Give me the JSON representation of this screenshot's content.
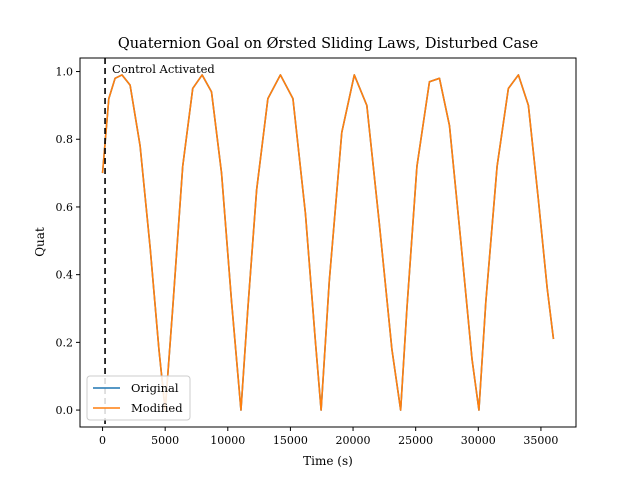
{
  "chart_data": {
    "type": "line",
    "title": "Quaternion Goal on Ørsted Sliding Laws, Disturbed Case",
    "xlabel": "Time (s)",
    "ylabel": "Quat",
    "xlim": [
      -1800,
      37800
    ],
    "ylim": [
      -0.05,
      1.04
    ],
    "xticks": [
      0,
      5000,
      10000,
      15000,
      20000,
      25000,
      30000,
      35000
    ],
    "yticks": [
      0.0,
      0.2,
      0.4,
      0.6,
      0.8,
      1.0
    ],
    "xtick_labels": [
      "0",
      "5000",
      "10000",
      "15000",
      "20000",
      "25000",
      "30000",
      "35000"
    ],
    "ytick_labels": [
      "0.0",
      "0.2",
      "0.4",
      "0.6",
      "0.8",
      "1.0"
    ],
    "grid": false,
    "legend_position": "lower-left",
    "annotation": {
      "text": "Control Activated",
      "x": 200
    },
    "series": [
      {
        "name": "Original",
        "color": "#1f77b4",
        "x": [
          0,
          500,
          1000,
          1550,
          2200,
          3000,
          3800,
          4500,
          5000,
          5600,
          6400,
          7200,
          7950,
          8700,
          9500,
          10300,
          11050,
          11600,
          12300,
          13200,
          14200,
          15200,
          16200,
          17000,
          17450,
          18100,
          19100,
          20100,
          21100,
          22100,
          23100,
          23800,
          24300,
          25100,
          26100,
          26900,
          27700,
          28600,
          29500,
          30050,
          30600,
          31500,
          32400,
          33200,
          34000,
          34800,
          35500,
          36000
        ],
        "y": [
          0.7,
          0.92,
          0.98,
          0.99,
          0.96,
          0.78,
          0.48,
          0.18,
          0.0,
          0.3,
          0.72,
          0.95,
          0.99,
          0.94,
          0.7,
          0.32,
          0.0,
          0.3,
          0.65,
          0.92,
          0.99,
          0.92,
          0.58,
          0.2,
          0.0,
          0.38,
          0.82,
          0.99,
          0.9,
          0.55,
          0.18,
          0.0,
          0.3,
          0.72,
          0.97,
          0.98,
          0.84,
          0.5,
          0.15,
          0.0,
          0.32,
          0.72,
          0.95,
          0.99,
          0.9,
          0.62,
          0.36,
          0.21
        ]
      },
      {
        "name": "Modified",
        "color": "#ff7f0e",
        "x": [
          0,
          500,
          1000,
          1550,
          2200,
          3000,
          3800,
          4500,
          5000,
          5600,
          6400,
          7200,
          7950,
          8700,
          9500,
          10300,
          11050,
          11600,
          12300,
          13200,
          14200,
          15200,
          16200,
          17000,
          17450,
          18100,
          19100,
          20100,
          21100,
          22100,
          23100,
          23800,
          24300,
          25100,
          26100,
          26900,
          27700,
          28600,
          29500,
          30050,
          30600,
          31500,
          32400,
          33200,
          34000,
          34800,
          35500,
          36000
        ],
        "y": [
          0.7,
          0.92,
          0.98,
          0.99,
          0.96,
          0.78,
          0.48,
          0.18,
          0.0,
          0.3,
          0.72,
          0.95,
          0.99,
          0.94,
          0.7,
          0.32,
          0.0,
          0.3,
          0.65,
          0.92,
          0.99,
          0.92,
          0.58,
          0.2,
          0.0,
          0.38,
          0.82,
          0.99,
          0.9,
          0.55,
          0.18,
          0.0,
          0.3,
          0.72,
          0.97,
          0.98,
          0.84,
          0.5,
          0.15,
          0.0,
          0.32,
          0.72,
          0.95,
          0.99,
          0.9,
          0.62,
          0.36,
          0.21
        ]
      }
    ]
  }
}
